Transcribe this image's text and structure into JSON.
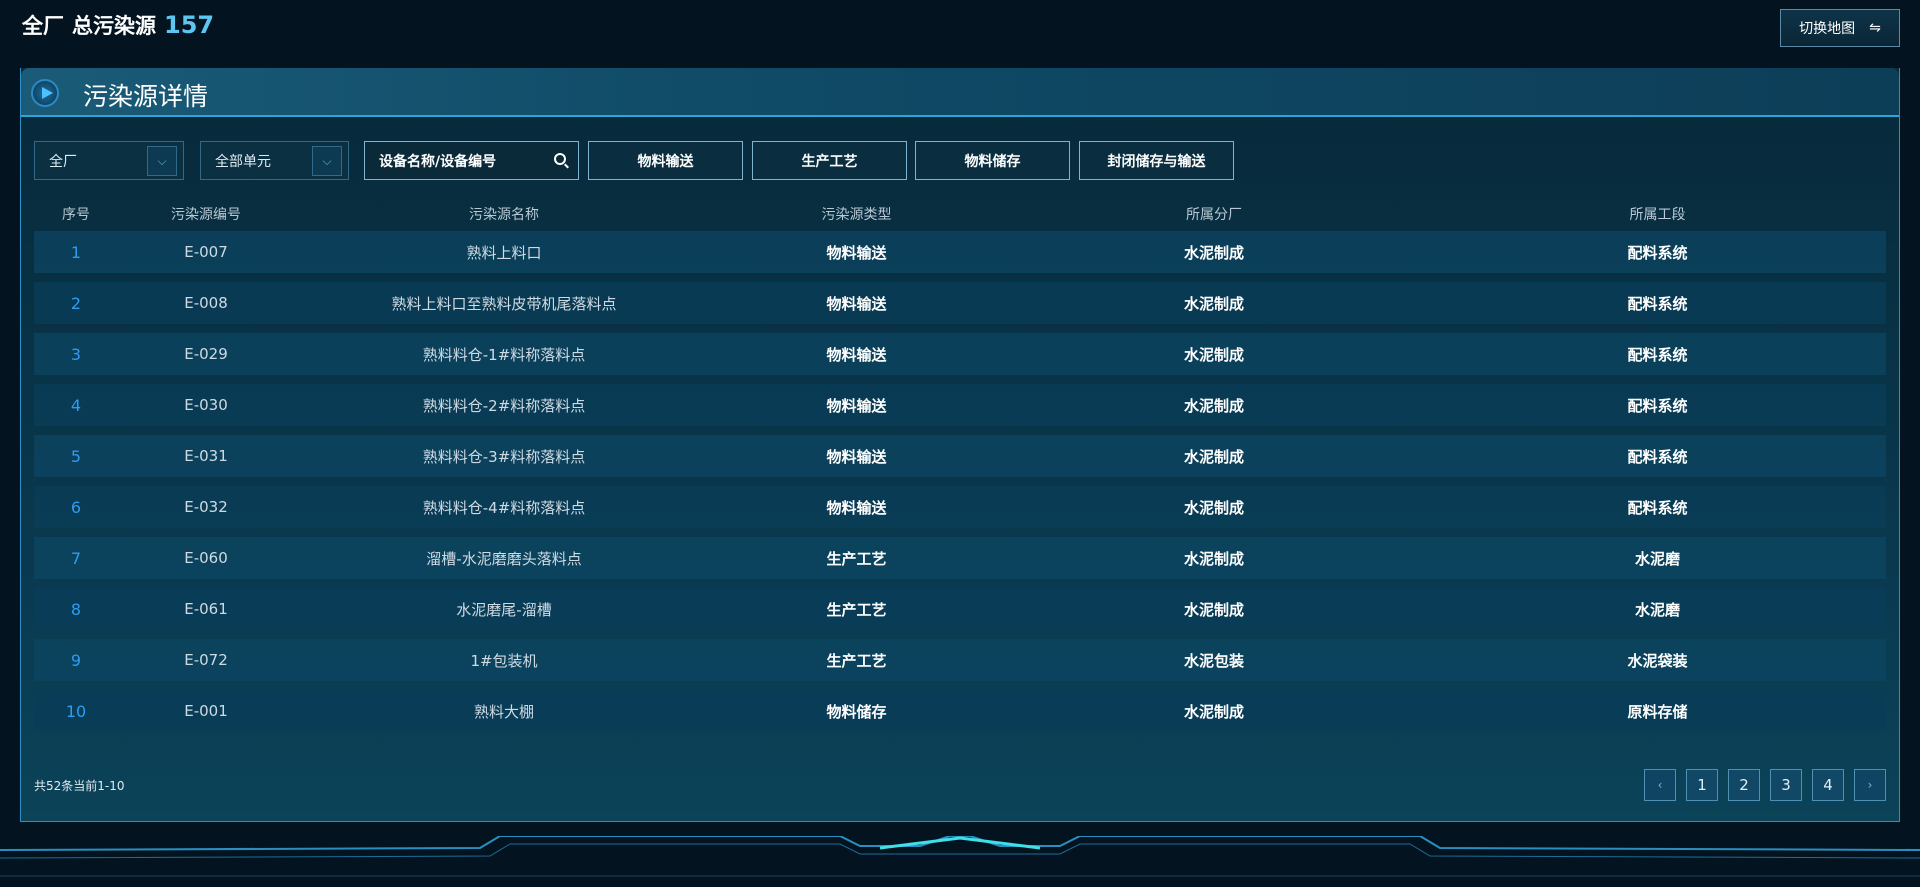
{
  "header": {
    "scope": "全厂",
    "label": "总污染源",
    "count": "157",
    "switch_label": "切换地图",
    "switch_icon": "swap-arrows-icon"
  },
  "panel": {
    "title": "污染源详情"
  },
  "filters": {
    "plant_select": "全厂",
    "unit_select": "全部单元",
    "search_placeholder": "设备名称/设备编号",
    "types": [
      "物料输送",
      "生产工艺",
      "物料储存",
      "封闭储存与输送"
    ]
  },
  "table": {
    "columns": [
      "序号",
      "污染源编号",
      "污染源名称",
      "污染源类型",
      "所属分厂",
      "所属工段"
    ],
    "rows": [
      [
        "1",
        "E-007",
        "熟料上料口",
        "物料输送",
        "水泥制成",
        "配料系统"
      ],
      [
        "2",
        "E-008",
        "熟料上料口至熟料皮带机尾落料点",
        "物料输送",
        "水泥制成",
        "配料系统"
      ],
      [
        "3",
        "E-029",
        "熟料料仓-1#料称落料点",
        "物料输送",
        "水泥制成",
        "配料系统"
      ],
      [
        "4",
        "E-030",
        "熟料料仓-2#料称落料点",
        "物料输送",
        "水泥制成",
        "配料系统"
      ],
      [
        "5",
        "E-031",
        "熟料料仓-3#料称落料点",
        "物料输送",
        "水泥制成",
        "配料系统"
      ],
      [
        "6",
        "E-032",
        "熟料料仓-4#料称落料点",
        "物料输送",
        "水泥制成",
        "配料系统"
      ],
      [
        "7",
        "E-060",
        "溜槽-水泥磨磨头落料点",
        "生产工艺",
        "水泥制成",
        "水泥磨"
      ],
      [
        "8",
        "E-061",
        "水泥磨尾-溜槽",
        "生产工艺",
        "水泥制成",
        "水泥磨"
      ],
      [
        "9",
        "E-072",
        "1#包装机",
        "生产工艺",
        "水泥包装",
        "水泥袋装"
      ],
      [
        "10",
        "E-001",
        "熟料大棚",
        "物料储存",
        "水泥制成",
        "原料存储"
      ]
    ]
  },
  "pagination": {
    "summary": "共52条当前1-10",
    "prev": "‹",
    "next": "›",
    "pages": [
      "1",
      "2",
      "3",
      "4"
    ]
  }
}
